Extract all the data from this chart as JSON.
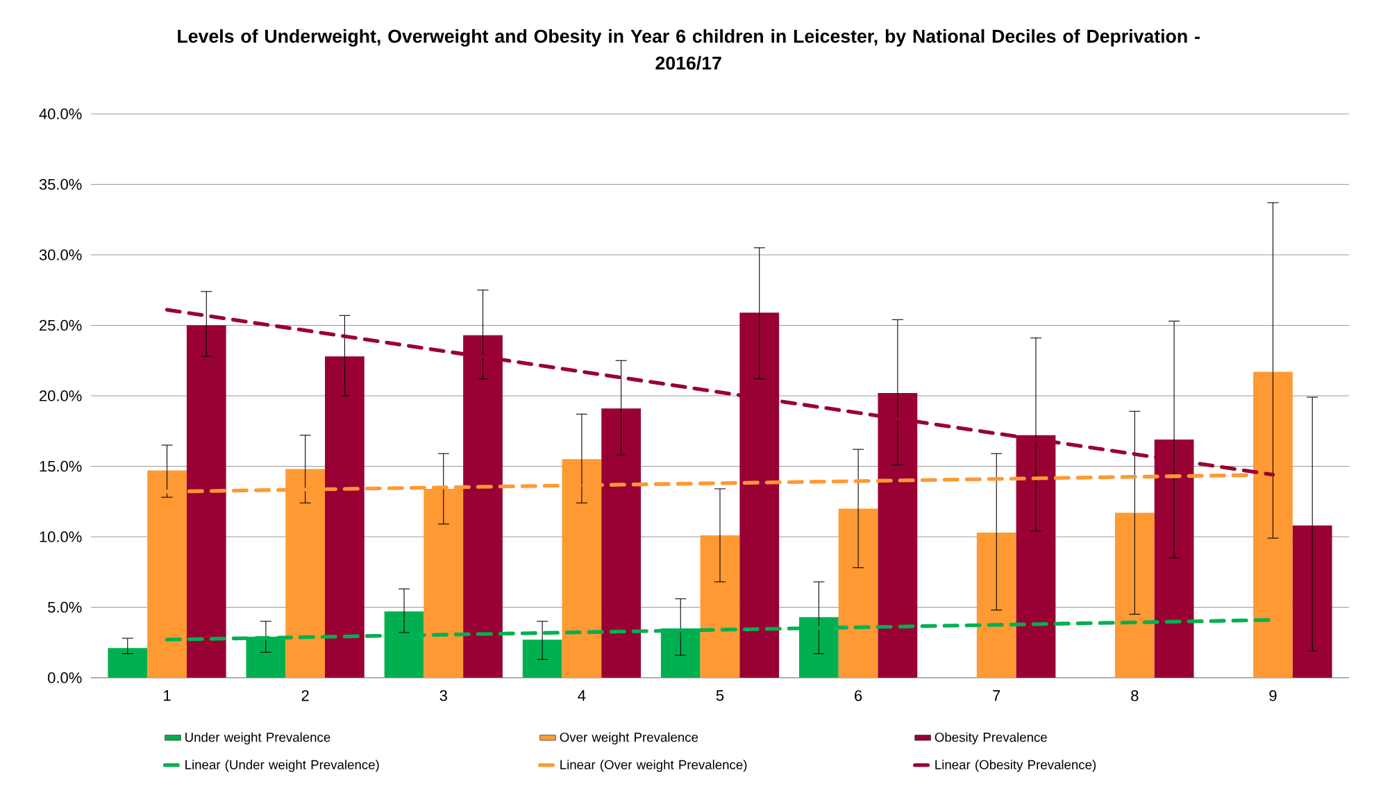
{
  "chart_data": {
    "type": "bar",
    "title": "Levels of Underweight, Overweight and Obesity in Year 6 children in Leicester, by National Deciles of Deprivation - 2016/17",
    "categories": [
      "1",
      "2",
      "3",
      "4",
      "5",
      "6",
      "7",
      "8",
      "9"
    ],
    "series": [
      {
        "name": "Under weight Prevalence",
        "color": "#00b050",
        "values": [
          2.1,
          2.9,
          4.7,
          2.7,
          3.5,
          4.3,
          null,
          null,
          null
        ],
        "errors": [
          [
            1.7,
            2.8
          ],
          [
            1.8,
            4.0
          ],
          [
            3.2,
            6.3
          ],
          [
            1.3,
            4.0
          ],
          [
            1.6,
            5.6
          ],
          [
            1.7,
            6.8
          ],
          null,
          null,
          null
        ]
      },
      {
        "name": "Over weight Prevalence",
        "color": "#ff9933",
        "values": [
          14.7,
          14.8,
          13.4,
          15.5,
          10.1,
          12.0,
          10.3,
          11.7,
          21.7
        ],
        "errors": [
          [
            12.8,
            16.5
          ],
          [
            12.4,
            17.2
          ],
          [
            10.9,
            15.9
          ],
          [
            12.4,
            18.7
          ],
          [
            6.8,
            13.4
          ],
          [
            7.8,
            16.2
          ],
          [
            4.8,
            15.9
          ],
          [
            4.5,
            18.9
          ],
          [
            9.9,
            33.7
          ]
        ]
      },
      {
        "name": "Obesity Prevalence",
        "color": "#990033",
        "values": [
          25.0,
          22.8,
          24.3,
          19.1,
          25.9,
          20.2,
          17.2,
          16.9,
          10.8
        ],
        "errors": [
          [
            22.8,
            27.4
          ],
          [
            20.0,
            25.7
          ],
          [
            21.2,
            27.5
          ],
          [
            15.8,
            22.5
          ],
          [
            21.2,
            30.5
          ],
          [
            15.1,
            25.4
          ],
          [
            10.4,
            24.1
          ],
          [
            8.5,
            25.3
          ],
          [
            1.9,
            19.9
          ]
        ]
      },
      {
        "name": "Linear (Under weight Prevalence)",
        "type": "line",
        "line_style": "dashed",
        "color": "#00b050",
        "x": [
          "1",
          "9"
        ],
        "values": [
          2.7,
          4.1
        ]
      },
      {
        "name": "Linear (Over weight Prevalence)",
        "type": "line",
        "line_style": "dashed",
        "color": "#ff9933",
        "x": [
          "1",
          "9"
        ],
        "values": [
          13.2,
          14.4
        ]
      },
      {
        "name": "Linear (Obesity Prevalence)",
        "type": "line",
        "line_style": "dashed",
        "color": "#990033",
        "x": [
          "1",
          "9"
        ],
        "values": [
          26.1,
          14.4
        ]
      }
    ],
    "ylim": [
      0,
      40
    ],
    "yticks": [
      {
        "value": 0,
        "label": "0.0%"
      },
      {
        "value": 5,
        "label": "5.0%"
      },
      {
        "value": 10,
        "label": "10.0%"
      },
      {
        "value": 15,
        "label": "15.0%"
      },
      {
        "value": 20,
        "label": "20.0%"
      },
      {
        "value": 25,
        "label": "25.0%"
      },
      {
        "value": 30,
        "label": "30.0%"
      },
      {
        "value": 35,
        "label": "35.0%"
      },
      {
        "value": 40,
        "label": "40.0%"
      }
    ],
    "grid": "y",
    "legend": "bottom"
  }
}
